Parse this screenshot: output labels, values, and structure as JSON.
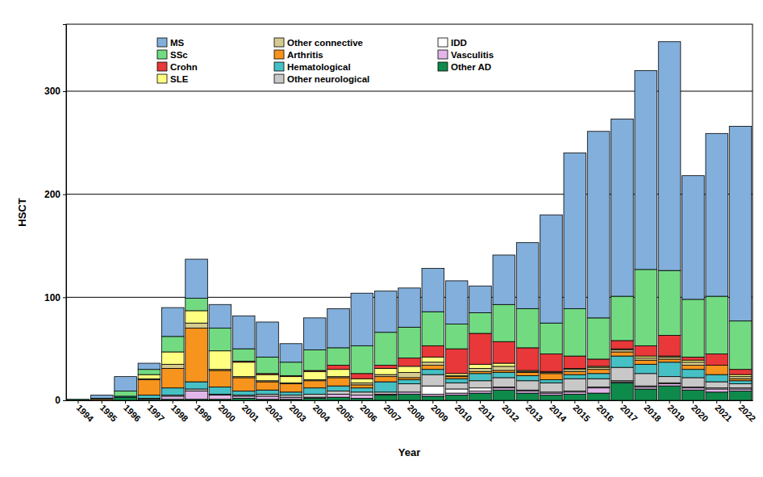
{
  "chart_data": {
    "type": "bar",
    "stacked": true,
    "grid": true,
    "legend": "top",
    "x_label": "Year",
    "y_label": "HSCT",
    "categories": [
      "1994",
      "1995",
      "1996",
      "1997",
      "1998",
      "1999",
      "2000",
      "2001",
      "2002",
      "2003",
      "2004",
      "2005",
      "2006",
      "2007",
      "2008",
      "2009",
      "2010",
      "2011",
      "2012",
      "2013",
      "2014",
      "2015",
      "2016",
      "2017",
      "2018",
      "2019",
      "2020",
      "2021",
      "2022"
    ],
    "ylim": [
      0,
      365
    ],
    "yticks": [
      0,
      100,
      200,
      300
    ],
    "series": [
      {
        "name": "Other AD",
        "color": "#0e8a4a",
        "values": [
          1,
          0,
          3,
          1,
          1,
          1,
          1,
          2,
          1,
          1,
          2,
          3,
          2,
          5,
          6,
          4,
          5,
          7,
          10,
          7,
          5,
          6,
          7,
          17,
          11,
          14,
          10,
          8,
          9
        ]
      },
      {
        "name": "Vasculitis",
        "color": "#e2b6e8",
        "values": [
          0,
          0,
          0,
          1,
          3,
          8,
          4,
          2,
          3,
          2,
          1,
          3,
          3,
          1,
          2,
          2,
          2,
          2,
          2,
          2,
          2,
          2,
          5,
          1,
          2,
          2,
          2,
          3,
          2
        ]
      },
      {
        "name": "IDD",
        "color": "#ffffff",
        "values": [
          0,
          0,
          0,
          0,
          0,
          0,
          0,
          0,
          0,
          0,
          0,
          0,
          0,
          0,
          0,
          8,
          4,
          3,
          1,
          1,
          1,
          1,
          1,
          1,
          1,
          1,
          1,
          1,
          1
        ]
      },
      {
        "name": "Other neurological",
        "color": "#c8c8c8",
        "values": [
          0,
          0,
          0,
          0,
          1,
          2,
          1,
          1,
          2,
          2,
          3,
          3,
          3,
          2,
          8,
          11,
          6,
          7,
          9,
          9,
          9,
          12,
          8,
          13,
          12,
          6,
          9,
          6,
          4
        ]
      },
      {
        "name": "Hematological",
        "color": "#46c0c4",
        "values": [
          0,
          0,
          1,
          3,
          7,
          7,
          7,
          4,
          4,
          3,
          6,
          5,
          4,
          10,
          4,
          5,
          4,
          7,
          5,
          5,
          3,
          4,
          5,
          11,
          9,
          14,
          8,
          7,
          3
        ]
      },
      {
        "name": "Arthritis",
        "color": "#f7941d",
        "values": [
          0,
          1,
          0,
          15,
          19,
          52,
          16,
          13,
          8,
          8,
          7,
          8,
          3,
          5,
          2,
          4,
          2,
          2,
          2,
          3,
          6,
          3,
          4,
          4,
          4,
          3,
          4,
          9,
          2
        ]
      },
      {
        "name": "Other connective",
        "color": "#d5cb8e",
        "values": [
          0,
          0,
          0,
          1,
          4,
          5,
          1,
          1,
          1,
          1,
          1,
          1,
          2,
          2,
          5,
          3,
          1,
          3,
          4,
          1,
          1,
          2,
          2,
          2,
          2,
          2,
          3,
          0,
          2
        ]
      },
      {
        "name": "SLE",
        "color": "#ffff80",
        "values": [
          0,
          0,
          0,
          4,
          12,
          12,
          18,
          14,
          6,
          6,
          8,
          7,
          4,
          6,
          6,
          5,
          2,
          4,
          3,
          1,
          1,
          1,
          1,
          1,
          2,
          1,
          2,
          0,
          2
        ]
      },
      {
        "name": "Crohn",
        "color": "#e8383a",
        "values": [
          0,
          0,
          0,
          0,
          0,
          0,
          0,
          1,
          1,
          1,
          1,
          4,
          5,
          3,
          8,
          11,
          24,
          30,
          21,
          22,
          17,
          12,
          7,
          8,
          10,
          20,
          3,
          11,
          5
        ]
      },
      {
        "name": "SSc",
        "color": "#72db82",
        "values": [
          0,
          1,
          5,
          5,
          15,
          12,
          22,
          12,
          16,
          13,
          20,
          17,
          27,
          32,
          30,
          33,
          24,
          20,
          36,
          38,
          30,
          46,
          40,
          43,
          74,
          63,
          56,
          56,
          47
        ]
      },
      {
        "name": "MS",
        "color": "#82afdb",
        "values": [
          0,
          3,
          14,
          6,
          28,
          38,
          23,
          32,
          34,
          18,
          31,
          38,
          51,
          40,
          38,
          42,
          42,
          26,
          48,
          64,
          105,
          151,
          181,
          172,
          193,
          222,
          120,
          158,
          189
        ]
      }
    ]
  }
}
